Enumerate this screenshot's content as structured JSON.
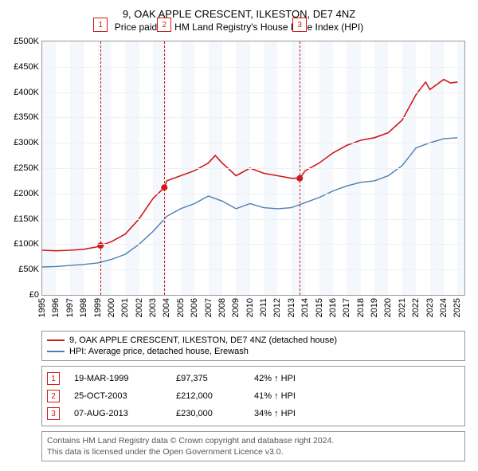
{
  "title": "9, OAK APPLE CRESCENT, ILKESTON, DE7 4NZ",
  "subtitle": "Price paid vs. HM Land Registry's House Price Index (HPI)",
  "chart": {
    "type": "line",
    "x_min": 1995,
    "x_max": 2025.5,
    "y_min": 0,
    "y_max": 500000,
    "y_ticks": [
      0,
      50000,
      100000,
      150000,
      200000,
      250000,
      300000,
      350000,
      400000,
      450000,
      500000
    ],
    "y_tick_labels": [
      "£0",
      "£50K",
      "£100K",
      "£150K",
      "£200K",
      "£250K",
      "£300K",
      "£350K",
      "£400K",
      "£450K",
      "£500K"
    ],
    "x_ticks": [
      1995,
      1996,
      1997,
      1998,
      1999,
      2000,
      2001,
      2002,
      2003,
      2004,
      2005,
      2006,
      2007,
      2008,
      2009,
      2010,
      2011,
      2012,
      2013,
      2014,
      2015,
      2016,
      2017,
      2018,
      2019,
      2020,
      2021,
      2022,
      2023,
      2024,
      2025
    ],
    "alt_bands": [
      [
        1995,
        1996
      ],
      [
        1997,
        1998
      ],
      [
        1999,
        2000
      ],
      [
        2001,
        2002
      ],
      [
        2003,
        2004
      ],
      [
        2005,
        2006
      ],
      [
        2007,
        2008
      ],
      [
        2009,
        2010
      ],
      [
        2011,
        2012
      ],
      [
        2013,
        2014
      ],
      [
        2015,
        2016
      ],
      [
        2017,
        2018
      ],
      [
        2019,
        2020
      ],
      [
        2021,
        2022
      ],
      [
        2023,
        2024
      ],
      [
        2025,
        2025.5
      ]
    ],
    "background_color": "#ffffff",
    "grid_color": "#f0f0f0",
    "series": [
      {
        "name": "property",
        "label": "9, OAK APPLE CRESCENT, ILKESTON, DE7 4NZ (detached house)",
        "color": "#d11919",
        "line_width": 1.6,
        "points": [
          [
            1995,
            88000
          ],
          [
            1996,
            87000
          ],
          [
            1997,
            88000
          ],
          [
            1998,
            90000
          ],
          [
            1999,
            95000
          ],
          [
            1999.21,
            97375
          ],
          [
            2000,
            105000
          ],
          [
            2001,
            120000
          ],
          [
            2002,
            150000
          ],
          [
            2003,
            190000
          ],
          [
            2003.82,
            212000
          ],
          [
            2004,
            225000
          ],
          [
            2005,
            235000
          ],
          [
            2006,
            245000
          ],
          [
            2007,
            260000
          ],
          [
            2007.5,
            275000
          ],
          [
            2008,
            260000
          ],
          [
            2009,
            235000
          ],
          [
            2010,
            250000
          ],
          [
            2011,
            240000
          ],
          [
            2012,
            235000
          ],
          [
            2013,
            230000
          ],
          [
            2013.6,
            230000
          ],
          [
            2014,
            245000
          ],
          [
            2015,
            260000
          ],
          [
            2016,
            280000
          ],
          [
            2017,
            295000
          ],
          [
            2018,
            305000
          ],
          [
            2019,
            310000
          ],
          [
            2020,
            320000
          ],
          [
            2021,
            345000
          ],
          [
            2022,
            395000
          ],
          [
            2022.7,
            420000
          ],
          [
            2023,
            405000
          ],
          [
            2024,
            425000
          ],
          [
            2024.5,
            418000
          ],
          [
            2025,
            420000
          ]
        ]
      },
      {
        "name": "hpi",
        "label": "HPI: Average price, detached house, Erewash",
        "color": "#4a7fb0",
        "line_width": 1.4,
        "points": [
          [
            1995,
            55000
          ],
          [
            1996,
            56000
          ],
          [
            1997,
            58000
          ],
          [
            1998,
            60000
          ],
          [
            1999,
            63000
          ],
          [
            2000,
            70000
          ],
          [
            2001,
            80000
          ],
          [
            2002,
            100000
          ],
          [
            2003,
            125000
          ],
          [
            2004,
            155000
          ],
          [
            2005,
            170000
          ],
          [
            2006,
            180000
          ],
          [
            2007,
            195000
          ],
          [
            2008,
            185000
          ],
          [
            2009,
            170000
          ],
          [
            2010,
            180000
          ],
          [
            2011,
            172000
          ],
          [
            2012,
            170000
          ],
          [
            2013,
            172000
          ],
          [
            2014,
            182000
          ],
          [
            2015,
            192000
          ],
          [
            2016,
            205000
          ],
          [
            2017,
            215000
          ],
          [
            2018,
            222000
          ],
          [
            2019,
            225000
          ],
          [
            2020,
            235000
          ],
          [
            2021,
            255000
          ],
          [
            2022,
            290000
          ],
          [
            2023,
            300000
          ],
          [
            2024,
            308000
          ],
          [
            2025,
            310000
          ]
        ]
      }
    ],
    "markers": [
      {
        "n": "1",
        "x": 1999.21,
        "y": 97375,
        "color": "#d11919"
      },
      {
        "n": "2",
        "x": 2003.82,
        "y": 212000,
        "color": "#d11919"
      },
      {
        "n": "3",
        "x": 2013.6,
        "y": 230000,
        "color": "#d11919"
      }
    ]
  },
  "legend": {
    "items": [
      {
        "color": "#d11919",
        "label": "9, OAK APPLE CRESCENT, ILKESTON, DE7 4NZ (detached house)"
      },
      {
        "color": "#4a7fb0",
        "label": "HPI: Average price, detached house, Erewash"
      }
    ]
  },
  "transactions": [
    {
      "n": "1",
      "date": "19-MAR-1999",
      "price": "£97,375",
      "pct": "42% ↑ HPI",
      "color": "#d11919"
    },
    {
      "n": "2",
      "date": "25-OCT-2003",
      "price": "£212,000",
      "pct": "41% ↑ HPI",
      "color": "#d11919"
    },
    {
      "n": "3",
      "date": "07-AUG-2013",
      "price": "£230,000",
      "pct": "34% ↑ HPI",
      "color": "#d11919"
    }
  ],
  "footer_lines": [
    "Contains HM Land Registry data © Crown copyright and database right 2024.",
    "This data is licensed under the Open Government Licence v3.0."
  ]
}
